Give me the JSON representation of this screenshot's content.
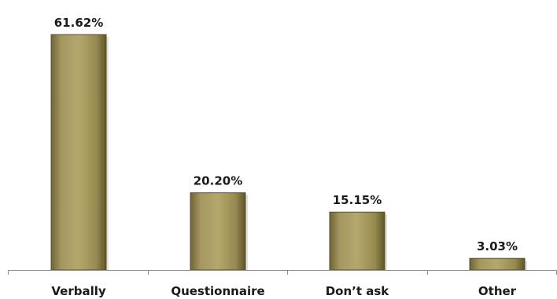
{
  "chart_data": {
    "type": "bar",
    "title": "",
    "xlabel": "",
    "ylabel": "",
    "categories": [
      "Verbally",
      "Questionnaire",
      "Don’t ask",
      "Other"
    ],
    "values": [
      61.62,
      20.2,
      15.15,
      3.03
    ],
    "data_labels": [
      "61.62%",
      "20.20%",
      "15.15%",
      "3.03%"
    ],
    "ylim": [
      0,
      61.62
    ],
    "grid": false,
    "legend": "none",
    "colors": {
      "bar_fill": "#9c8f55",
      "bar_light": "#b3a86c",
      "bar_dark": "#6f6434",
      "axis": "#8c8c8c"
    }
  }
}
